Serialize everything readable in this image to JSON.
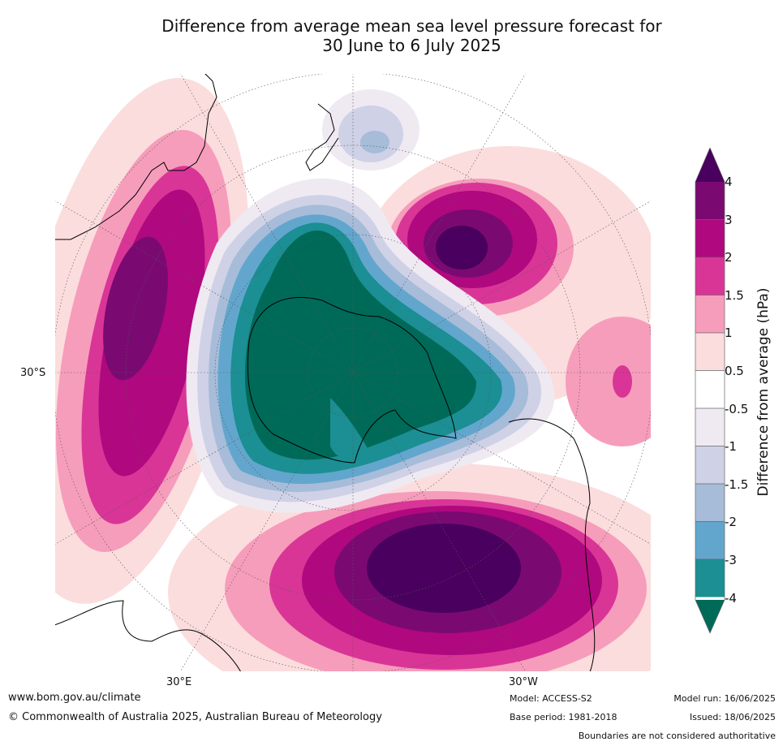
{
  "title": {
    "line1": "Difference from average mean sea level pressure forecast for",
    "line2": "30 June to 6 July 2025"
  },
  "map": {
    "projection": "south-polar stereographic",
    "lat_labels": [
      "30°S"
    ],
    "lon_labels": [
      "30°E",
      "30°W"
    ],
    "land_outline_color": "#000000",
    "graticule_color": "#555555"
  },
  "colorbar": {
    "label": "Difference from average (hPa)",
    "ticks": [
      "4",
      "3",
      "2",
      "1.5",
      "1",
      "0.5",
      "-0.5",
      "-1",
      "-1.5",
      "-2",
      "-3",
      "-4"
    ],
    "colors": {
      "above_4": "#4a005f",
      "3_to_4": "#7a0a72",
      "2_to_3": "#b0087e",
      "1.5_to_2": "#d93597",
      "1_to_1.5": "#f69dbb",
      "0.5_to_1": "#fbdddd",
      "-0.5_to_0.5": "#ffffff",
      "-1_to_-0.5": "#efe9f2",
      "-1.5_to_-1": "#cfd1e6",
      "-2_to_-1.5": "#a6bcd9",
      "-3_to_-2": "#62a6cd",
      "-4_to_-3": "#1b8f93",
      "below_-4": "#006a59"
    }
  },
  "footer": {
    "website": "www.bom.gov.au/climate",
    "copyright": "© Commonwealth of Australia 2025, Australian Bureau of Meteorology",
    "model": "Model: ACCESS-S2",
    "base_period": "Base period: 1981-2018",
    "model_run": "Model run: 16/06/2025",
    "issued": "Issued: 18/06/2025",
    "disclaimer": "Boundaries are not considered authoritative"
  }
}
